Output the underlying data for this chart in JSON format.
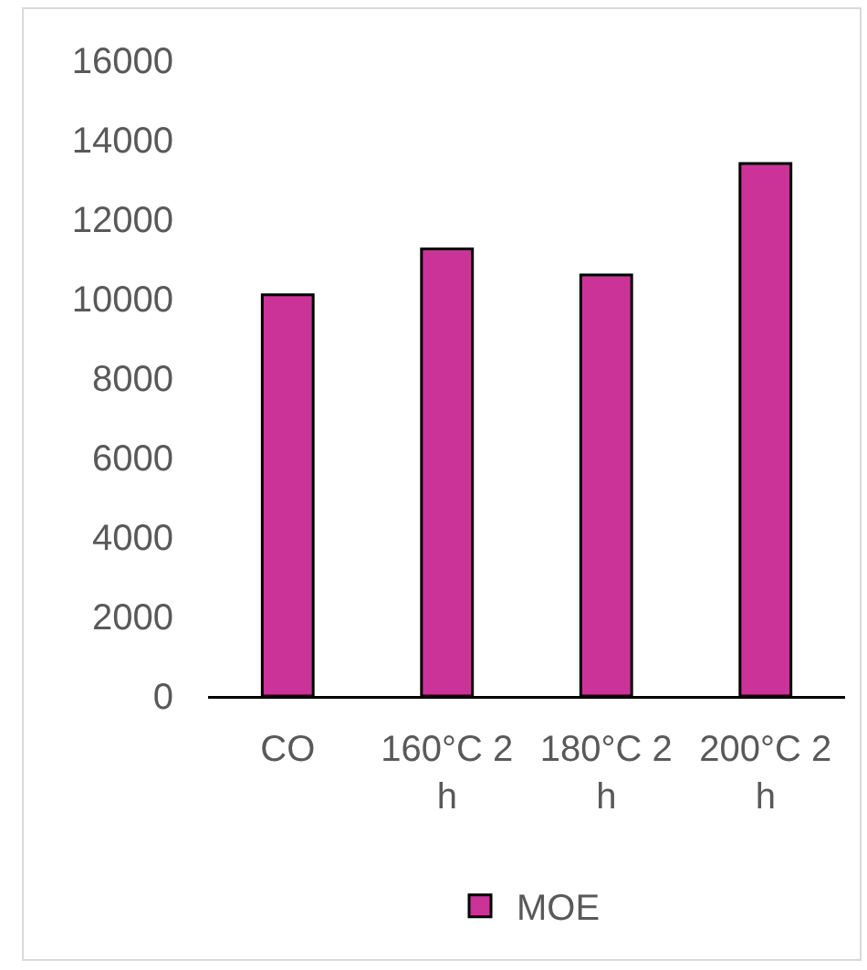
{
  "chart_data": {
    "type": "bar",
    "categories": [
      "CO",
      "160°C 2 h",
      "180°C 2 h",
      "200°C 2 h"
    ],
    "series": [
      {
        "name": "MOE",
        "color": "#cc3399",
        "values": [
          10100,
          11250,
          10600,
          13400
        ]
      }
    ],
    "ylim": [
      0,
      16000
    ],
    "yticks": [
      0,
      2000,
      4000,
      6000,
      8000,
      10000,
      12000,
      14000,
      16000
    ],
    "legend": "bottom"
  }
}
